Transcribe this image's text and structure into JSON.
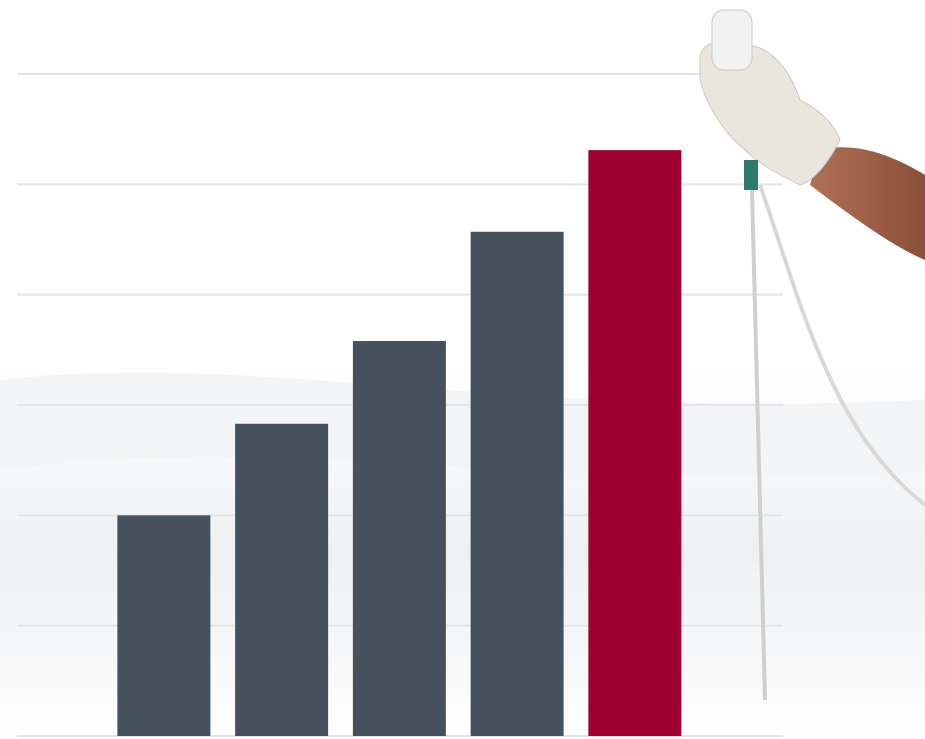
{
  "chart_data": {
    "type": "bar",
    "categories": [
      null,
      null,
      null,
      null,
      null
    ],
    "values": [
      2,
      2.83,
      3.58,
      4.57,
      5.31
    ],
    "colors": [
      "#45525e",
      "#45525e",
      "#45525e",
      "#45525e",
      "#a0002f"
    ],
    "ylim": [
      0,
      6
    ],
    "yticks": [
      0,
      1,
      2,
      3,
      4,
      5,
      6
    ],
    "grid": true
  }
}
